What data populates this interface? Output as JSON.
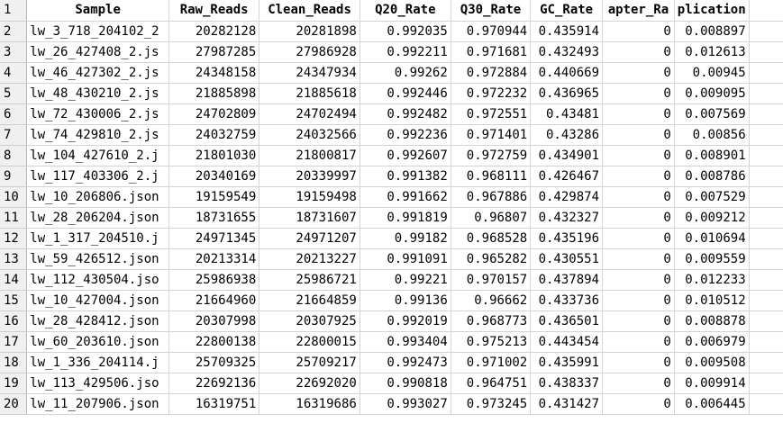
{
  "sheet": {
    "header": {
      "row_number": "1",
      "columns": [
        "Sample",
        "Raw_Reads",
        "Clean_Reads",
        "Q20_Rate",
        "Q30_Rate",
        "GC_Rate",
        "apter_Ra",
        "plication"
      ]
    },
    "rows": [
      {
        "n": "2",
        "cells": [
          "lw_3_718_204102_2",
          "20282128",
          "20281898",
          "0.992035",
          "0.970944",
          "0.435914",
          "0",
          "0.008897"
        ]
      },
      {
        "n": "3",
        "cells": [
          "lw_26_427408_2.js",
          "27987285",
          "27986928",
          "0.992211",
          "0.971681",
          "0.432493",
          "0",
          "0.012613"
        ]
      },
      {
        "n": "4",
        "cells": [
          "lw_46_427302_2.js",
          "24348158",
          "24347934",
          "0.99262",
          "0.972884",
          "0.440669",
          "0",
          "0.00945"
        ]
      },
      {
        "n": "5",
        "cells": [
          "lw_48_430210_2.js",
          "21885898",
          "21885618",
          "0.992446",
          "0.972232",
          "0.436965",
          "0",
          "0.009095"
        ]
      },
      {
        "n": "6",
        "cells": [
          "lw_72_430006_2.js",
          "24702809",
          "24702494",
          "0.992482",
          "0.972551",
          "0.43481",
          "0",
          "0.007569"
        ]
      },
      {
        "n": "7",
        "cells": [
          "lw_74_429810_2.js",
          "24032759",
          "24032566",
          "0.992236",
          "0.971401",
          "0.43286",
          "0",
          "0.00856"
        ]
      },
      {
        "n": "8",
        "cells": [
          "lw_104_427610_2.j",
          "21801030",
          "21800817",
          "0.992607",
          "0.972759",
          "0.434901",
          "0",
          "0.008901"
        ]
      },
      {
        "n": "9",
        "cells": [
          "lw_117_403306_2.j",
          "20340169",
          "20339997",
          "0.991382",
          "0.968111",
          "0.426467",
          "0",
          "0.008786"
        ]
      },
      {
        "n": "10",
        "cells": [
          "lw_10_206806.json",
          "19159549",
          "19159498",
          "0.991662",
          "0.967886",
          "0.429874",
          "0",
          "0.007529"
        ]
      },
      {
        "n": "11",
        "cells": [
          "lw_28_206204.json",
          "18731655",
          "18731607",
          "0.991819",
          "0.96807",
          "0.432327",
          "0",
          "0.009212"
        ]
      },
      {
        "n": "12",
        "cells": [
          "lw_1_317_204510.j",
          "24971345",
          "24971207",
          "0.99182",
          "0.968528",
          "0.435196",
          "0",
          "0.010694"
        ]
      },
      {
        "n": "13",
        "cells": [
          "lw_59_426512.json",
          "20213314",
          "20213227",
          "0.991091",
          "0.965282",
          "0.430551",
          "0",
          "0.009559"
        ]
      },
      {
        "n": "14",
        "cells": [
          "lw_112_430504.jso",
          "25986938",
          "25986721",
          "0.99221",
          "0.970157",
          "0.437894",
          "0",
          "0.012233"
        ]
      },
      {
        "n": "15",
        "cells": [
          "lw_10_427004.json",
          "21664960",
          "21664859",
          "0.99136",
          "0.96662",
          "0.433736",
          "0",
          "0.010512"
        ]
      },
      {
        "n": "16",
        "cells": [
          "lw_28_428412.json",
          "20307998",
          "20307925",
          "0.992019",
          "0.968773",
          "0.436501",
          "0",
          "0.008878"
        ]
      },
      {
        "n": "17",
        "cells": [
          "lw_60_203610.json",
          "22800138",
          "22800015",
          "0.993404",
          "0.975213",
          "0.443454",
          "0",
          "0.006979"
        ]
      },
      {
        "n": "18",
        "cells": [
          "lw_1_336_204114.j",
          "25709325",
          "25709217",
          "0.992473",
          "0.971002",
          "0.435991",
          "0",
          "0.009508"
        ]
      },
      {
        "n": "19",
        "cells": [
          "lw_113_429506.jso",
          "22692136",
          "22692020",
          "0.990818",
          "0.964751",
          "0.438337",
          "0",
          "0.009914"
        ]
      },
      {
        "n": "20",
        "cells": [
          "lw_11_207906.json",
          "16319751",
          "16319686",
          "0.993027",
          "0.973245",
          "0.431427",
          "0",
          "0.006445"
        ]
      }
    ]
  }
}
